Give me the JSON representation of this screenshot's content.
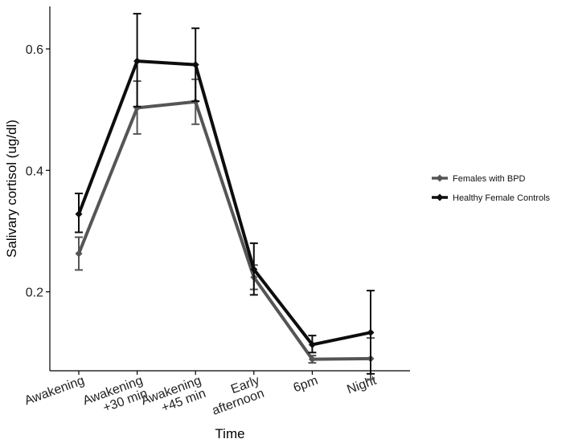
{
  "chart_data": {
    "type": "line",
    "title": "",
    "xlabel": "Time",
    "ylabel": "Salivary cortisol (ug/dl)",
    "ylim": [
      0.07,
      0.67
    ],
    "yticks": [
      0.2,
      0.4,
      0.6
    ],
    "ytick_labels": [
      "0.2",
      "0.4",
      "0.6"
    ],
    "categories": [
      [
        "Awakening"
      ],
      [
        "Awakening",
        "+30 min"
      ],
      [
        "Awakening",
        "+45 min"
      ],
      [
        "Early",
        "afternoon"
      ],
      [
        "6pm"
      ],
      [
        "Night"
      ]
    ],
    "grid": false,
    "legend_position": "right",
    "series": [
      {
        "name": "Females with BPD",
        "color": "#555555",
        "values": [
          0.263,
          0.503,
          0.513,
          0.224,
          0.089,
          0.09
        ],
        "err_low": [
          0.236,
          0.46,
          0.476,
          0.204,
          0.083,
          0.056
        ],
        "err_high": [
          0.29,
          0.547,
          0.55,
          0.244,
          0.095,
          0.124
        ]
      },
      {
        "name": "Healthy Female Controls",
        "color": "#0d0d0d",
        "values": [
          0.328,
          0.58,
          0.574,
          0.237,
          0.113,
          0.133
        ],
        "err_low": [
          0.298,
          0.505,
          0.514,
          0.195,
          0.1,
          0.065
        ],
        "err_high": [
          0.362,
          0.658,
          0.634,
          0.28,
          0.128,
          0.202
        ]
      }
    ]
  }
}
